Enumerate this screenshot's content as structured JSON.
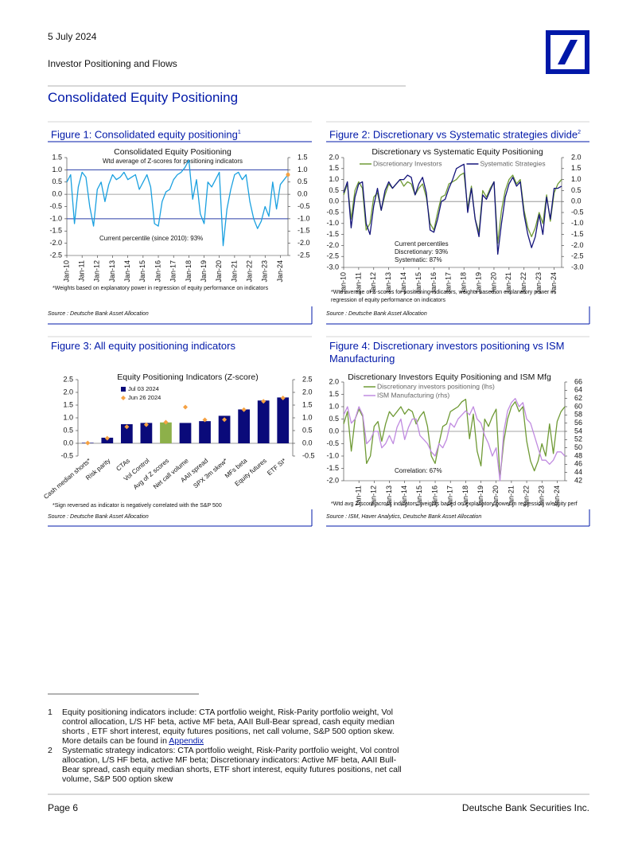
{
  "header": {
    "date": "5 July 2024",
    "report": "Investor Positioning and Flows"
  },
  "section_title": "Consolidated Equity Positioning",
  "figures": [
    {
      "title": "Figure 1: Consolidated equity positioning",
      "sup": "1",
      "note": "*Weights based on explanatory power in regression of equity performance on indicators",
      "source": "Source : Deutsche Bank Asset Allocation"
    },
    {
      "title": "Figure 2: Discretionary vs Systematic strategies divide",
      "sup": "2",
      "note": "*Wtd average of Z-scores for positioning indicators, weights based on explanatory power in regression of equity performance on indicators",
      "source": "Source : Deutsche Bank Asset Allocation"
    },
    {
      "title": "Figure 3: All equity positioning indicators",
      "note": "*Sign reversed as indicator is negatively correlated with the S&P 500",
      "source": "Source : Deutsche Bank Asset Allocation"
    },
    {
      "title": "Figure 4: Discretionary investors positioning vs ISM Manufacturing",
      "note": "*Wtd avg Z-score across indicators; weights based on explanatory power in regression w/equity perf",
      "source": "Source : ISM, Haver Analytics, Deutsche Bank Asset Allocation"
    }
  ],
  "chart_data": [
    {
      "type": "line",
      "title": "Consolidated Equity Positioning",
      "subtitle": "Wtd average of Z-scores for positioning indicators",
      "annotation": [
        "Current percentile (since 2010): 93%"
      ],
      "right_axis": true,
      "zero_line": true,
      "ref_lines": [
        1,
        -1
      ],
      "ref_color": "#2a3fa8",
      "x": [
        "Jan-10",
        "Apr-10",
        "Jul-10",
        "Oct-10",
        "Jan-11",
        "Apr-11",
        "Jul-11",
        "Oct-11",
        "Jan-12",
        "Apr-12",
        "Jul-12",
        "Oct-12",
        "Jan-13",
        "Apr-13",
        "Jul-13",
        "Oct-13",
        "Jan-14",
        "Apr-14",
        "Jul-14",
        "Oct-14",
        "Jan-15",
        "Apr-15",
        "Jul-15",
        "Oct-15",
        "Jan-16",
        "Apr-16",
        "Jul-16",
        "Oct-16",
        "Jan-17",
        "Apr-17",
        "Jul-17",
        "Oct-17",
        "Jan-18",
        "Apr-18",
        "Jul-18",
        "Oct-18",
        "Jan-19",
        "Apr-19",
        "Jul-19",
        "Oct-19",
        "Jan-20",
        "Apr-20",
        "Jul-20",
        "Oct-20",
        "Jan-21",
        "Apr-21",
        "Jul-21",
        "Oct-21",
        "Jan-22",
        "Apr-22",
        "Jul-22",
        "Oct-22",
        "Jan-23",
        "Apr-23",
        "Jul-23",
        "Oct-23",
        "Jan-24",
        "Apr-24",
        "Jul-24"
      ],
      "xlim": [
        "Jan-10",
        "Jul-24"
      ],
      "xticks": [
        "Jan-10",
        "Jan-11",
        "Jan-12",
        "Jan-13",
        "Jan-14",
        "Jan-15",
        "Jan-16",
        "Jan-17",
        "Jan-18",
        "Jan-19",
        "Jan-20",
        "Jan-21",
        "Jan-22",
        "Jan-23",
        "Jan-24"
      ],
      "ylim": [
        -2.5,
        1.5
      ],
      "yticks": [
        1.5,
        {
          "value": 1,
          "label": "1.0"
        },
        0.5,
        {
          "value": 0,
          "label": "0.0"
        },
        -0.5,
        {
          "value": -1,
          "label": "-1.0"
        },
        -1.5,
        {
          "value": -2,
          "label": "-2.0"
        },
        -2.5
      ],
      "series": [
        {
          "color": "#1aa0e0",
          "values": [
            0.5,
            0.8,
            -1.2,
            0.3,
            0.9,
            0.7,
            -0.5,
            -1.3,
            0.2,
            0.5,
            -0.3,
            0.4,
            0.8,
            0.6,
            0.7,
            0.9,
            0.6,
            0.7,
            0.8,
            0.2,
            0.5,
            0.8,
            0.3,
            -1.2,
            -1.3,
            -0.3,
            0.1,
            0.2,
            0.6,
            0.8,
            0.9,
            1.1,
            1.4,
            -0.2,
            0.6,
            -0.8,
            -1.2,
            0.5,
            0.3,
            0.6,
            0.9,
            -2.1,
            -0.6,
            0.2,
            0.8,
            0.9,
            0.6,
            0.8,
            -0.3,
            -1.0,
            -1.4,
            -1.1,
            -0.5,
            -0.9,
            0.5,
            -0.6,
            0.4,
            0.6,
            0.8
          ]
        }
      ],
      "marker": {
        "x": "Jul-24",
        "value": 0.8,
        "color": "#f5a142"
      }
    },
    {
      "type": "line",
      "title": "Discretionary  vs Systematic Equity Positioning",
      "annotation": [
        "Current percentiles",
        "Discretionary: 93%",
        "Systematic: 87%"
      ],
      "right_axis": true,
      "zero_line": true,
      "legend": "top",
      "x": [
        "Jan-10",
        "Apr-10",
        "Jul-10",
        "Oct-10",
        "Jan-11",
        "Apr-11",
        "Jul-11",
        "Oct-11",
        "Jan-12",
        "Apr-12",
        "Jul-12",
        "Oct-12",
        "Jan-13",
        "Apr-13",
        "Jul-13",
        "Oct-13",
        "Jan-14",
        "Apr-14",
        "Jul-14",
        "Oct-14",
        "Jan-15",
        "Apr-15",
        "Jul-15",
        "Oct-15",
        "Jan-16",
        "Apr-16",
        "Jul-16",
        "Oct-16",
        "Jan-17",
        "Apr-17",
        "Jul-17",
        "Oct-17",
        "Jan-18",
        "Apr-18",
        "Jul-18",
        "Oct-18",
        "Jan-19",
        "Apr-19",
        "Jul-19",
        "Oct-19",
        "Jan-20",
        "Apr-20",
        "Jul-20",
        "Oct-20",
        "Jan-21",
        "Apr-21",
        "Jul-21",
        "Oct-21",
        "Jan-22",
        "Apr-22",
        "Jul-22",
        "Oct-22",
        "Jan-23",
        "Apr-23",
        "Jul-23",
        "Oct-23",
        "Jan-24",
        "Apr-24",
        "Jul-24"
      ],
      "xlim": [
        "Jan-10",
        "Jul-24"
      ],
      "xticks": [
        "Jan-10",
        "Jan-11",
        "Jan-12",
        "Jan-13",
        "Jan-14",
        "Jan-15",
        "Jan-16",
        "Jan-17",
        "Jan-18",
        "Jan-19",
        "Jan-20",
        "Jan-21",
        "Jan-22",
        "Jan-23",
        "Jan-24"
      ],
      "ylim": [
        -3,
        2
      ],
      "yticks": [
        {
          "value": 2,
          "label": "2.0"
        },
        1.5,
        {
          "value": 1,
          "label": "1.0"
        },
        0.5,
        {
          "value": 0,
          "label": "0.0"
        },
        -0.5,
        {
          "value": -1,
          "label": "-1.0"
        },
        -1.5,
        {
          "value": -2,
          "label": "-2.0"
        },
        -2.5,
        {
          "value": -3,
          "label": "-3.0"
        }
      ],
      "series": [
        {
          "name": "Discretionary Investors",
          "color": "#6f9a35",
          "values": [
            0.3,
            0.8,
            -0.8,
            0.5,
            0.9,
            0.6,
            -1.3,
            -1.0,
            0.2,
            0.4,
            -0.4,
            0.3,
            0.8,
            0.6,
            0.8,
            1.0,
            0.7,
            0.9,
            0.8,
            0.3,
            0.6,
            0.8,
            0.2,
            -1.0,
            -1.3,
            -0.5,
            0.2,
            0.3,
            0.8,
            0.9,
            1.0,
            1.2,
            1.3,
            -0.3,
            0.7,
            -0.8,
            -1.4,
            0.5,
            0.2,
            0.6,
            0.9,
            -1.9,
            -0.4,
            0.5,
            1.0,
            1.2,
            0.8,
            1.0,
            -0.4,
            -1.2,
            -1.6,
            -1.2,
            -0.5,
            -1.0,
            0.3,
            -0.9,
            0.4,
            0.8,
            1.0
          ]
        },
        {
          "name": "Systematic Strategies",
          "color": "#14147a",
          "values": [
            0.4,
            0.9,
            -1.2,
            0.2,
            0.8,
            0.9,
            -1.0,
            -1.5,
            -0.2,
            0.6,
            -0.4,
            0.5,
            0.9,
            0.6,
            0.8,
            1.0,
            1.0,
            1.2,
            1.1,
            0.3,
            0.8,
            1.1,
            0.4,
            -1.3,
            -1.4,
            -0.8,
            0.0,
            0.1,
            0.6,
            1.0,
            1.5,
            1.6,
            1.7,
            -0.5,
            0.6,
            -0.8,
            -1.6,
            0.3,
            0.1,
            0.5,
            0.9,
            -2.4,
            -1.0,
            0.2,
            0.8,
            1.1,
            0.7,
            0.9,
            -0.6,
            -1.5,
            -2.1,
            -1.6,
            -0.6,
            -1.5,
            0.2,
            -0.8,
            0.6,
            0.6,
            0.7
          ]
        }
      ]
    },
    {
      "type": "bar",
      "title": "Equity Positioning Indicators (Z-score)",
      "right_axis": true,
      "legend": "top-left",
      "categories": [
        "Cash median shorts*",
        "Risk parity",
        "CTAs",
        "Vol Control",
        "Avg of Z scores",
        "Net call volume",
        "AAII spread",
        "SPX 3m skew*",
        "MFs beta",
        "Equity futures",
        "ETF SI*"
      ],
      "ylim": [
        -0.5,
        2.5
      ],
      "yticks": [
        2.5,
        {
          "value": 2,
          "label": "2.0"
        },
        1.5,
        {
          "value": 1,
          "label": "1.0"
        },
        0.5,
        {
          "value": 0,
          "label": "0.0"
        },
        -0.5
      ],
      "series": [
        {
          "name": "Jul 03 2024",
          "color": "#0a0a7a",
          "colors": [
            "#0a0a7a",
            "#0a0a7a",
            "#0a0a7a",
            "#0a0a7a",
            "#8db04a",
            "#0a0a7a",
            "#0a0a7a",
            "#0a0a7a",
            "#0a0a7a",
            "#0a0a7a",
            "#0a0a7a"
          ],
          "values": [
            0.02,
            0.22,
            0.75,
            0.8,
            0.82,
            0.8,
            0.87,
            1.08,
            1.33,
            1.68,
            1.8
          ]
        },
        {
          "name": "Jun 26 2024",
          "color": "#f5a142",
          "marker": "diamond",
          "values": [
            0.01,
            0.2,
            0.65,
            0.73,
            0.83,
            1.42,
            0.92,
            0.93,
            1.32,
            1.65,
            1.78
          ]
        }
      ]
    },
    {
      "type": "line",
      "title": "Discretionary Investors Equity Positioning and ISM Mfg",
      "annotation": [
        "Correlation: 67%"
      ],
      "zero_line": true,
      "legend": "top-left",
      "x": [
        "Jan-10",
        "Apr-10",
        "Jul-10",
        "Oct-10",
        "Jan-11",
        "Apr-11",
        "Jul-11",
        "Oct-11",
        "Jan-12",
        "Apr-12",
        "Jul-12",
        "Oct-12",
        "Jan-13",
        "Apr-13",
        "Jul-13",
        "Oct-13",
        "Jan-14",
        "Apr-14",
        "Jul-14",
        "Oct-14",
        "Jan-15",
        "Apr-15",
        "Jul-15",
        "Oct-15",
        "Jan-16",
        "Apr-16",
        "Jul-16",
        "Oct-16",
        "Jan-17",
        "Apr-17",
        "Jul-17",
        "Oct-17",
        "Jan-18",
        "Apr-18",
        "Jul-18",
        "Oct-18",
        "Jan-19",
        "Apr-19",
        "Jul-19",
        "Oct-19",
        "Jan-20",
        "Apr-20",
        "Jul-20",
        "Oct-20",
        "Jan-21",
        "Apr-21",
        "Jul-21",
        "Oct-21",
        "Jan-22",
        "Apr-22",
        "Jul-22",
        "Oct-22",
        "Jan-23",
        "Apr-23",
        "Jul-23",
        "Oct-23",
        "Jan-24",
        "Apr-24",
        "Jul-24"
      ],
      "xlim": [
        "Jan-10",
        "Jul-24"
      ],
      "xticks": [
        "Jan-11",
        "Jan-12",
        "Jan-13",
        "Jan-14",
        "Jan-15",
        "Jan-16",
        "Jan-17",
        "Jan-18",
        "Jan-19",
        "Jan-20",
        "Jan-21",
        "Jan-22",
        "Jan-23",
        "Jan-24"
      ],
      "ylim": [
        -2,
        2
      ],
      "yticks": [
        {
          "value": 2,
          "label": "2.0"
        },
        1.5,
        {
          "value": 1,
          "label": "1.0"
        },
        0.5,
        {
          "value": 0,
          "label": "0.0"
        },
        -0.5,
        {
          "value": -1,
          "label": "-1.0"
        },
        -1.5,
        {
          "value": -2,
          "label": "-2.0"
        }
      ],
      "y2lim": [
        42,
        66
      ],
      "y2ticks": [
        66,
        64,
        62,
        60,
        58,
        56,
        54,
        52,
        50,
        48,
        46,
        44,
        42
      ],
      "series": [
        {
          "name": "Discretionary investors positioning (lhs)",
          "color": "#6f9a35",
          "values": [
            0.3,
            0.8,
            -0.8,
            0.5,
            0.9,
            0.6,
            -1.3,
            -1.0,
            0.2,
            0.4,
            -0.4,
            0.3,
            0.8,
            0.6,
            0.8,
            1.0,
            0.7,
            0.9,
            0.8,
            0.3,
            0.6,
            0.8,
            0.2,
            -1.0,
            -1.3,
            -0.5,
            0.2,
            0.3,
            0.8,
            0.9,
            1.0,
            1.2,
            1.3,
            -0.3,
            0.7,
            -0.8,
            -1.4,
            0.5,
            0.2,
            0.6,
            0.9,
            -1.9,
            -0.4,
            0.5,
            1.0,
            1.2,
            0.8,
            1.0,
            -0.4,
            -1.2,
            -1.6,
            -1.2,
            -0.5,
            -1.0,
            0.3,
            -0.9,
            0.4,
            0.8,
            1.0
          ]
        },
        {
          "name": "ISM Manufacturing (rhs)",
          "color": "#c08be0",
          "axis": "y2",
          "values": [
            58,
            60,
            56,
            57,
            60,
            58,
            51,
            52,
            54,
            54,
            50,
            51,
            53,
            51,
            55,
            57,
            52,
            55,
            57,
            57,
            53,
            52,
            51,
            49,
            48,
            51,
            50,
            52,
            56,
            55,
            57,
            58,
            59,
            58,
            60,
            57,
            56,
            53,
            51,
            48,
            50,
            42,
            54,
            59,
            61,
            62,
            60,
            61,
            57,
            56,
            53,
            50,
            47,
            47,
            46,
            47,
            49,
            49,
            48
          ]
        }
      ]
    }
  ],
  "footnotes": [
    {
      "number": "1",
      "text": "Equity positioning indicators include: CTA portfolio weight, Risk-Parity portfolio weight, Vol control allocation, L/S HF beta, active MF beta, AAII Bull-Bear spread, cash equity median shorts , ETF short interest, equity futures positions, net call volume, S&P 500 option skew. More details can be found in",
      "link": "Appendix"
    },
    {
      "number": "2",
      "text": "Systematic strategy indicators: CTA portfolio weight, Risk-Parity portfolio weight, Vol control allocation, L/S HF beta, active MF beta; Discretionary indicators: Active MF beta, AAII Bull-Bear spread, cash equity median shorts, ETF short interest, equity futures positions, net call volume, S&P 500 option skew"
    }
  ],
  "footer": {
    "page": "Page 6",
    "company": "Deutsche Bank Securities Inc."
  }
}
